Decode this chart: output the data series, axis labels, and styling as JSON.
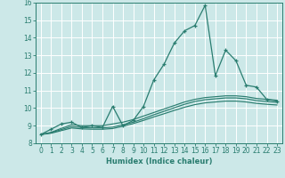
{
  "xlabel": "Humidex (Indice chaleur)",
  "xlim": [
    -0.5,
    23.5
  ],
  "ylim": [
    8,
    16
  ],
  "yticks": [
    8,
    9,
    10,
    11,
    12,
    13,
    14,
    15,
    16
  ],
  "xticks": [
    0,
    1,
    2,
    3,
    4,
    5,
    6,
    7,
    8,
    9,
    10,
    11,
    12,
    13,
    14,
    15,
    16,
    17,
    18,
    19,
    20,
    21,
    22,
    23
  ],
  "bg_color": "#cce8e8",
  "line_color": "#2a7d70",
  "grid_color": "#ffffff",
  "lines": [
    {
      "x": [
        0,
        1,
        2,
        3,
        4,
        5,
        6,
        7,
        8,
        9,
        10,
        11,
        12,
        13,
        14,
        15,
        16,
        17,
        18,
        19,
        20,
        21,
        22,
        23
      ],
      "y": [
        8.5,
        8.8,
        9.1,
        9.2,
        8.9,
        9.0,
        8.9,
        10.1,
        9.0,
        9.3,
        10.1,
        11.6,
        12.5,
        13.7,
        14.4,
        14.7,
        15.85,
        11.85,
        13.3,
        12.7,
        11.3,
        11.2,
        10.5,
        10.4
      ],
      "marker": "+"
    },
    {
      "x": [
        0,
        1,
        2,
        3,
        4,
        5,
        6,
        7,
        8,
        9,
        10,
        11,
        12,
        13,
        14,
        15,
        16,
        17,
        18,
        19,
        20,
        21,
        22,
        23
      ],
      "y": [
        8.5,
        8.62,
        8.85,
        9.05,
        9.0,
        9.0,
        9.0,
        9.1,
        9.2,
        9.35,
        9.55,
        9.75,
        9.95,
        10.15,
        10.35,
        10.5,
        10.6,
        10.65,
        10.7,
        10.7,
        10.65,
        10.55,
        10.5,
        10.45
      ],
      "marker": null
    },
    {
      "x": [
        0,
        1,
        2,
        3,
        4,
        5,
        6,
        7,
        8,
        9,
        10,
        11,
        12,
        13,
        14,
        15,
        16,
        17,
        18,
        19,
        20,
        21,
        22,
        23
      ],
      "y": [
        8.5,
        8.6,
        8.78,
        8.95,
        8.9,
        8.88,
        8.88,
        8.92,
        9.05,
        9.2,
        9.4,
        9.62,
        9.82,
        10.02,
        10.22,
        10.38,
        10.48,
        10.53,
        10.58,
        10.58,
        10.53,
        10.43,
        10.38,
        10.33
      ],
      "marker": null
    },
    {
      "x": [
        0,
        1,
        2,
        3,
        4,
        5,
        6,
        7,
        8,
        9,
        10,
        11,
        12,
        13,
        14,
        15,
        16,
        17,
        18,
        19,
        20,
        21,
        22,
        23
      ],
      "y": [
        8.5,
        8.57,
        8.72,
        8.87,
        8.82,
        8.8,
        8.8,
        8.84,
        8.97,
        9.12,
        9.3,
        9.5,
        9.68,
        9.87,
        10.05,
        10.2,
        10.3,
        10.35,
        10.4,
        10.4,
        10.35,
        10.27,
        10.22,
        10.18
      ],
      "marker": null
    }
  ]
}
